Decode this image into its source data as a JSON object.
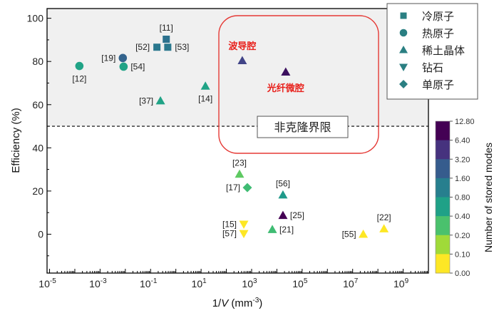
{
  "chart_data": {
    "type": "scatter",
    "xlabel": {
      "prefix": "1/",
      "var": "V",
      "unit": " (mm",
      "sup": "-3",
      "close": ")"
    },
    "ylabel": "Efficiency (%)",
    "x_scale": "log",
    "xlim_exponent": [
      -5.1,
      10
    ],
    "ylim": [
      -18,
      104.5
    ],
    "x_tick_labels": [
      {
        "exp": -5,
        "base": "10",
        "sup": "-5"
      },
      {
        "exp": -3,
        "base": "10",
        "sup": "-3"
      },
      {
        "exp": -1,
        "base": "10",
        "sup": "-1"
      },
      {
        "exp": 1,
        "base": "10",
        "sup": "1"
      },
      {
        "exp": 3,
        "base": "10",
        "sup": "3"
      },
      {
        "exp": 5,
        "base": "10",
        "sup": "5"
      },
      {
        "exp": 7,
        "base": "10",
        "sup": "7"
      },
      {
        "exp": 9,
        "base": "10",
        "sup": "9"
      }
    ],
    "y_ticks": [
      "0",
      "20",
      "40",
      "60",
      "80",
      "100"
    ],
    "threshold": {
      "value": 50,
      "label": "非克隆界限"
    },
    "shaded_region": "above threshold",
    "highlight_box_labels": [
      "波导腔",
      "光纤微腔"
    ],
    "legend": {
      "placement": "top-right",
      "entries": [
        {
          "marker": "square",
          "label": "冷原子"
        },
        {
          "marker": "circle",
          "label": "热原子"
        },
        {
          "marker": "triangle-up",
          "label": "稀土晶体"
        },
        {
          "marker": "triangle-down",
          "label": "钻石"
        },
        {
          "marker": "diamond",
          "label": "单原子"
        }
      ],
      "marker_color": "#2a7f82"
    },
    "colorbar": {
      "label": "Number of stored modes",
      "ticks": [
        "12.80",
        "6.40",
        "3.20",
        "1.60",
        "0.80",
        "0.40",
        "0.20",
        "0.10",
        "0.00"
      ],
      "colors": [
        "#440154",
        "#46327e",
        "#365c8d",
        "#277f8e",
        "#1fa187",
        "#4ac16d",
        "#a0da39",
        "#fde725"
      ]
    },
    "points": [
      {
        "label": "[11]",
        "marker": "square",
        "x_exp": -0.38,
        "y": 90.3,
        "color": "#2c718e",
        "lpos": "top"
      },
      {
        "label": "[52]",
        "marker": "square",
        "x_exp": -0.75,
        "y": 86.6,
        "color": "#2a788e",
        "lpos": "left"
      },
      {
        "label": "[53]",
        "marker": "square",
        "x_exp": -0.32,
        "y": 86.6,
        "color": "#2a788e",
        "lpos": "right"
      },
      {
        "label": "[19]",
        "marker": "circle",
        "x_exp": -2.1,
        "y": 81.6,
        "color": "#33638d",
        "lpos": "left"
      },
      {
        "label": "[54]",
        "marker": "circle",
        "x_exp": -2.07,
        "y": 77.6,
        "color": "#20a386",
        "lpos": "right"
      },
      {
        "label": "[12]",
        "marker": "circle",
        "x_exp": -3.82,
        "y": 77.9,
        "color": "#20a386",
        "lpos": "bottom"
      },
      {
        "label": "[37]",
        "marker": "triangle-up",
        "x_exp": -0.61,
        "y": 61.8,
        "color": "#20a386",
        "lpos": "left"
      },
      {
        "label": "[14]",
        "marker": "triangle-up",
        "x_exp": 1.17,
        "y": 68.6,
        "color": "#20a386",
        "lpos": "bottom"
      },
      {
        "label": "波导腔",
        "marker": "triangle-up",
        "x_exp": 2.63,
        "y": 80.4,
        "color": "#414487",
        "lpos": "top-red"
      },
      {
        "label": "光纤微腔",
        "marker": "triangle-up",
        "x_exp": 4.35,
        "y": 75.1,
        "color": "#3b0f5e",
        "lpos": "bottom-red"
      },
      {
        "label": "[23]",
        "marker": "triangle-up",
        "x_exp": 2.52,
        "y": 27.8,
        "color": "#5ec962",
        "lpos": "top"
      },
      {
        "label": "[17]",
        "marker": "diamond",
        "x_exp": 2.83,
        "y": 21.6,
        "color": "#3fbc73",
        "lpos": "left"
      },
      {
        "label": "[56]",
        "marker": "triangle-up",
        "x_exp": 4.24,
        "y": 18.2,
        "color": "#1f9a8a",
        "lpos": "top"
      },
      {
        "label": "[25]",
        "marker": "triangle-up",
        "x_exp": 4.24,
        "y": 8.7,
        "color": "#440154",
        "lpos": "right"
      },
      {
        "label": "[15]",
        "marker": "triangle-down",
        "x_exp": 2.69,
        "y": 4.6,
        "color": "#fde725",
        "lpos": "left"
      },
      {
        "label": "[57]",
        "marker": "triangle-down",
        "x_exp": 2.69,
        "y": 0.3,
        "color": "#fde725",
        "lpos": "left"
      },
      {
        "label": "[21]",
        "marker": "triangle-up",
        "x_exp": 3.82,
        "y": 2.2,
        "color": "#3fbc73",
        "lpos": "right"
      },
      {
        "label": "[55]",
        "marker": "triangle-up",
        "x_exp": 7.42,
        "y": 0.0,
        "color": "#fde725",
        "lpos": "left"
      },
      {
        "label": "[22]",
        "marker": "triangle-up",
        "x_exp": 8.24,
        "y": 2.5,
        "color": "#fde725",
        "lpos": "top"
      }
    ]
  }
}
